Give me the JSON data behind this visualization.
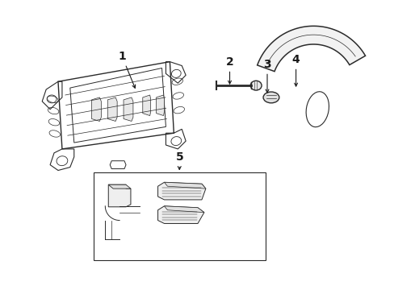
{
  "bg_color": "#ffffff",
  "line_color": "#2a2a2a",
  "text_color": "#1a1a1a",
  "label_fontsize": 9,
  "fig_width": 4.89,
  "fig_height": 3.6,
  "dpi": 100
}
